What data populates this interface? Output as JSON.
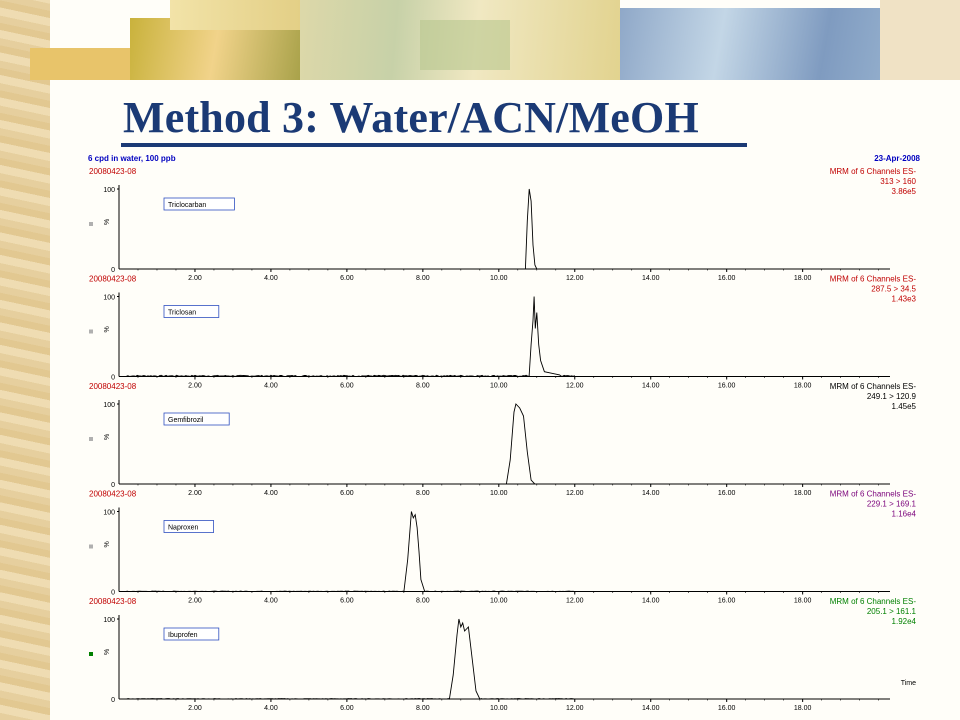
{
  "slide": {
    "title": "Method 3: Water/ACN/MeOH"
  },
  "header": {
    "sample_desc": "6 cpd in water, 100 ppb",
    "date": "23-Apr-2008"
  },
  "chart_data": {
    "type": "line",
    "x_axis_label": "Time",
    "xlim": [
      0,
      20.3
    ],
    "x_ticks": [
      "2.00",
      "4.00",
      "6.00",
      "8.00",
      "10.00",
      "12.00",
      "14.00",
      "16.00",
      "18.00"
    ],
    "y_ticks": [
      "0",
      "100"
    ],
    "y_axis_label": "%",
    "panels": [
      {
        "file": "20080423-08",
        "compound": "Triclocarban",
        "method": "MRM of 6 Channels ES-",
        "transition": "313 > 160",
        "intensity": "3.86e5",
        "color": "#c00000",
        "peaks": [
          [
            10.7,
            0
          ],
          [
            10.75,
            60
          ],
          [
            10.8,
            100
          ],
          [
            10.85,
            85
          ],
          [
            10.9,
            30
          ],
          [
            10.95,
            5
          ],
          [
            11.0,
            0
          ]
        ],
        "noise": 0
      },
      {
        "file": "20080423-08",
        "compound": "Triclosan",
        "method": "MRM of 6 Channels ES-",
        "transition": "287.5 > 34.5",
        "intensity": "1.43e3",
        "color": "#c00000",
        "peaks": [
          [
            10.8,
            2
          ],
          [
            10.85,
            40
          ],
          [
            10.9,
            70
          ],
          [
            10.93,
            100
          ],
          [
            10.96,
            60
          ],
          [
            11.0,
            80
          ],
          [
            11.05,
            40
          ],
          [
            11.1,
            20
          ],
          [
            11.2,
            6
          ],
          [
            11.4,
            4
          ],
          [
            11.6,
            2
          ]
        ],
        "noise": 1.5
      },
      {
        "file": "20080423-08",
        "compound": "Gemfibrozil",
        "method": "MRM of 6 Channels ES-",
        "transition": "249.1 > 120.9",
        "intensity": "1.45e5",
        "color": "#000000",
        "peaks": [
          [
            10.2,
            0
          ],
          [
            10.3,
            30
          ],
          [
            10.4,
            90
          ],
          [
            10.45,
            100
          ],
          [
            10.55,
            95
          ],
          [
            10.65,
            85
          ],
          [
            10.75,
            40
          ],
          [
            10.85,
            5
          ],
          [
            10.95,
            0
          ]
        ],
        "noise": 0
      },
      {
        "file": "20080423-08",
        "compound": "Naproxen",
        "method": "MRM of 6 Channels ES-",
        "transition": "229.1 > 169.1",
        "intensity": "1.16e4",
        "color": "#7a007a",
        "peaks": [
          [
            7.5,
            0
          ],
          [
            7.6,
            40
          ],
          [
            7.7,
            100
          ],
          [
            7.75,
            92
          ],
          [
            7.8,
            96
          ],
          [
            7.85,
            80
          ],
          [
            7.9,
            50
          ],
          [
            7.95,
            15
          ],
          [
            8.05,
            0
          ]
        ],
        "noise": 0.5
      },
      {
        "file": "20080423-08",
        "compound": "Ibuprofen",
        "method": "MRM of 6 Channels ES-",
        "transition": "205.1 > 161.1",
        "intensity": "1.92e4",
        "color": "#008000",
        "peaks": [
          [
            8.7,
            0
          ],
          [
            8.8,
            30
          ],
          [
            8.9,
            80
          ],
          [
            8.95,
            100
          ],
          [
            9.0,
            90
          ],
          [
            9.05,
            95
          ],
          [
            9.1,
            85
          ],
          [
            9.2,
            90
          ],
          [
            9.3,
            50
          ],
          [
            9.4,
            10
          ],
          [
            9.5,
            0
          ]
        ],
        "noise": 0.5
      }
    ]
  }
}
